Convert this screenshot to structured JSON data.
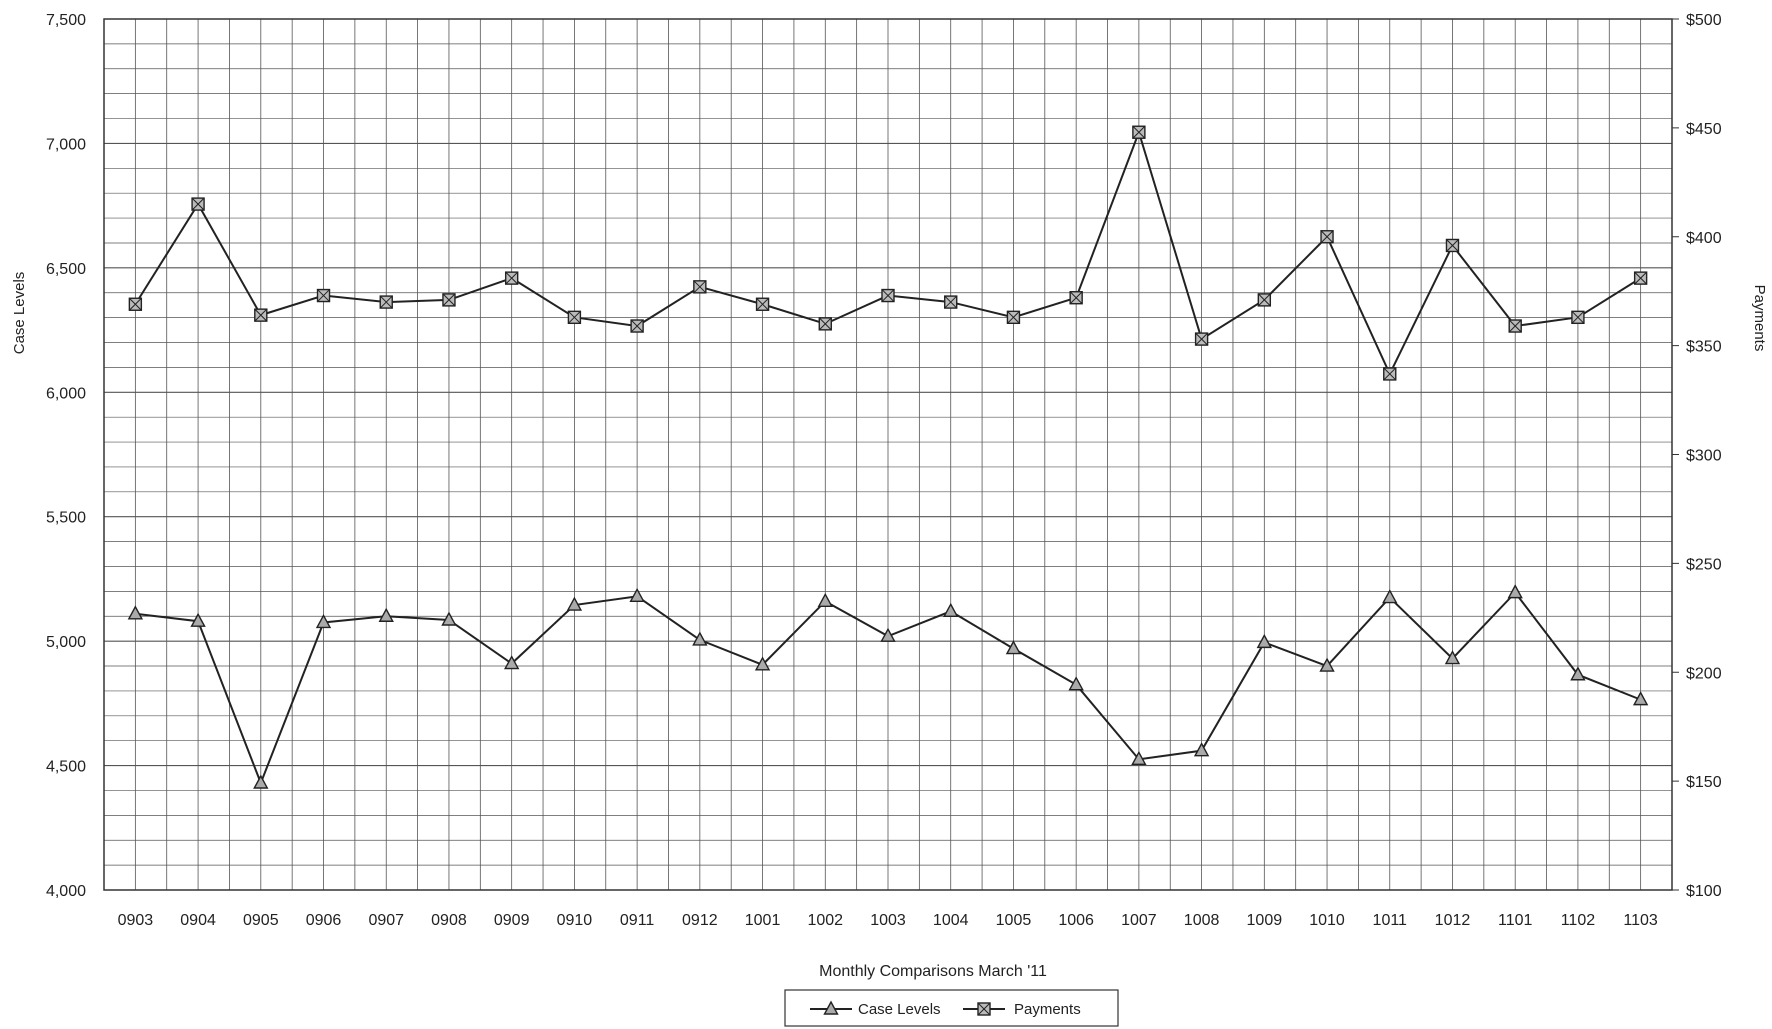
{
  "chart_data": {
    "type": "line",
    "title": "",
    "xlabel": "Monthly Comparisons  March '11",
    "ylabel": "Case Levels",
    "y2label": "Payments",
    "categories": [
      "0903",
      "0904",
      "0905",
      "0906",
      "0907",
      "0908",
      "0909",
      "0910",
      "0911",
      "0912",
      "1001",
      "1002",
      "1003",
      "1004",
      "1005",
      "1006",
      "1007",
      "1008",
      "1009",
      "1010",
      "1011",
      "1012",
      "1101",
      "1102",
      "1103"
    ],
    "ylim": [
      4000,
      7500
    ],
    "yticks": [
      "4,000",
      "4,500",
      "5,000",
      "5,500",
      "6,000",
      "6,500",
      "7,000",
      "7,500"
    ],
    "y2lim": [
      100,
      500
    ],
    "y2ticks": [
      "$100",
      "$150",
      "$200",
      "$250",
      "$300",
      "$350",
      "$400",
      "$450",
      "$500"
    ],
    "grid": true,
    "legend_position": "bottom-center",
    "series": [
      {
        "name": "Case Levels",
        "axis": "left",
        "marker": "triangle",
        "values": [
          5110,
          5080,
          4430,
          5075,
          5100,
          5085,
          4910,
          5145,
          5180,
          5005,
          4905,
          5160,
          5020,
          5120,
          4970,
          4825,
          4525,
          4560,
          4995,
          4900,
          5175,
          4930,
          5195,
          4865,
          4765
        ]
      },
      {
        "name": "Payments",
        "axis": "right",
        "marker": "square",
        "values": [
          369,
          415,
          364,
          373,
          370,
          371,
          381,
          363,
          359,
          377,
          369,
          360,
          373,
          370,
          363,
          372,
          448,
          353,
          371,
          400,
          337,
          396,
          359,
          363,
          381
        ]
      }
    ]
  }
}
